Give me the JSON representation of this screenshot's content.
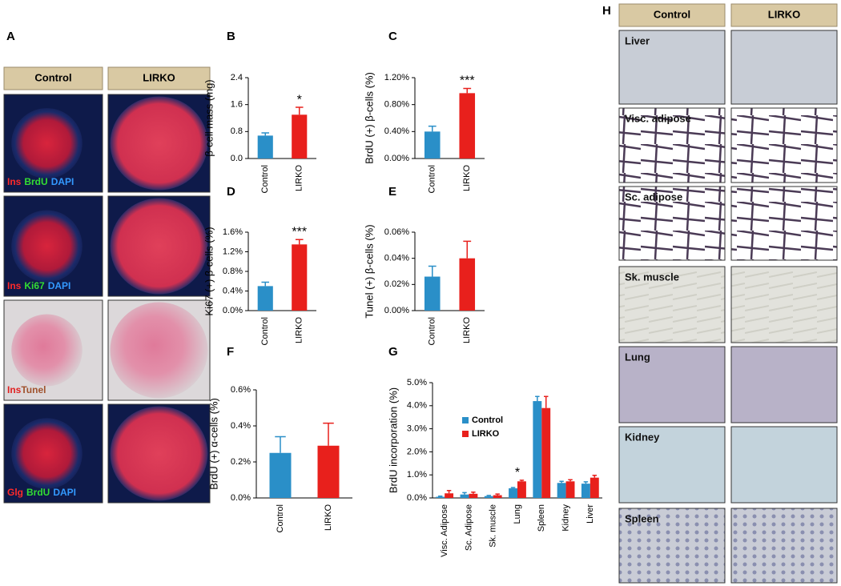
{
  "panel_a": {
    "label": "A",
    "columns": [
      "Control",
      "LIRKO"
    ],
    "stains": [
      [
        "Ins",
        "BrdU",
        "DAPI"
      ],
      [
        "Ins",
        "Ki67",
        "DAPI"
      ],
      [
        "Ins",
        "Tunel"
      ],
      [
        "Glg",
        "BrdU",
        "DAPI"
      ]
    ],
    "stain_colors": [
      [
        "#ff2a2a",
        "#33dd33",
        "#3399ff"
      ],
      [
        "#ff2a2a",
        "#33dd33",
        "#3399ff"
      ],
      [
        "#e02020",
        "#a0522d"
      ],
      [
        "#ff2a2a",
        "#33dd33",
        "#3399ff"
      ]
    ]
  },
  "panel_h": {
    "label": "H",
    "columns": [
      "Control",
      "LIRKO"
    ],
    "tissues": [
      "Liver",
      "Visc. adipose",
      "Sc. adipose",
      "Sk. muscle",
      "Lung",
      "Kidney",
      "Spleen"
    ]
  },
  "chart_data": [
    {
      "type": "bar",
      "panel": "B",
      "ylabel": "β-cell mass (mg)",
      "categories": [
        "Control",
        "LIRKO"
      ],
      "values": [
        0.68,
        1.3
      ],
      "errors": [
        0.08,
        0.22
      ],
      "colors": [
        "#2a8fc8",
        "#e8201c"
      ],
      "ylim": [
        0,
        2.4
      ],
      "yticks": [
        {
          "value": 0,
          "label": "0.0"
        },
        0.8,
        1.6,
        2.4
      ],
      "annotations": [
        {
          "text": "*",
          "x": "LIRKO"
        }
      ]
    },
    {
      "type": "bar",
      "panel": "C",
      "ylabel": "BrdU (+) β-cells (%)",
      "categories": [
        "Control",
        "LIRKO"
      ],
      "values": [
        0.4,
        0.97
      ],
      "errors": [
        0.08,
        0.07
      ],
      "colors": [
        "#2a8fc8",
        "#e8201c"
      ],
      "ylim": [
        0,
        1.2
      ],
      "yticks": [
        {
          "value": 0,
          "label": "0.00%"
        },
        {
          "value": 0.4,
          "label": "0.40%"
        },
        {
          "value": 0.8,
          "label": "0.80%"
        },
        {
          "value": 1.2,
          "label": "1.20%"
        }
      ],
      "annotations": [
        {
          "text": "***",
          "x": "LIRKO"
        }
      ]
    },
    {
      "type": "bar",
      "panel": "D",
      "ylabel": "Ki67 (+) β-cells (%)",
      "categories": [
        "Control",
        "LIRKO"
      ],
      "values": [
        0.5,
        1.35
      ],
      "errors": [
        0.08,
        0.1
      ],
      "colors": [
        "#2a8fc8",
        "#e8201c"
      ],
      "ylim": [
        0,
        1.6
      ],
      "yticks": [
        {
          "value": 0,
          "label": "0.0%"
        },
        {
          "value": 0.4,
          "label": "0.4%"
        },
        {
          "value": 0.8,
          "label": "0.8%"
        },
        {
          "value": 1.2,
          "label": "1.2%"
        },
        {
          "value": 1.6,
          "label": "1.6%"
        }
      ],
      "annotations": [
        {
          "text": "***",
          "x": "LIRKO"
        }
      ]
    },
    {
      "type": "bar",
      "panel": "E",
      "ylabel": "Tunel (+) β-cells (%)",
      "categories": [
        "Control",
        "LIRKO"
      ],
      "values": [
        0.026,
        0.04
      ],
      "errors": [
        0.008,
        0.013
      ],
      "colors": [
        "#2a8fc8",
        "#e8201c"
      ],
      "ylim": [
        0,
        0.06
      ],
      "yticks": [
        {
          "value": 0,
          "label": "0.00%"
        },
        {
          "value": 0.02,
          "label": "0.02%"
        },
        {
          "value": 0.04,
          "label": "0.04%"
        },
        {
          "value": 0.06,
          "label": "0.06%"
        }
      ]
    },
    {
      "type": "bar",
      "panel": "F",
      "ylabel": "BrdU (+) α-cells (%)",
      "categories": [
        "Control",
        "LIRKO"
      ],
      "values": [
        0.25,
        0.29
      ],
      "errors": [
        0.09,
        0.125
      ],
      "colors": [
        "#2a8fc8",
        "#e8201c"
      ],
      "ylim": [
        0,
        0.6
      ],
      "yticks": [
        {
          "value": 0,
          "label": "0.0%"
        },
        {
          "value": 0.2,
          "label": "0.2%"
        },
        {
          "value": 0.4,
          "label": "0.4%"
        },
        {
          "value": 0.6,
          "label": "0.6%"
        }
      ]
    },
    {
      "type": "bar",
      "panel": "G",
      "ylabel": "BrdU incorporation (%)",
      "categories": [
        "Visc. Adipose",
        "Sc. Adipose",
        "Sk. muscle",
        "Lung",
        "Spleen",
        "Kidney",
        "Liver"
      ],
      "series": [
        {
          "name": "Control",
          "color": "#2a8fc8",
          "values": [
            0.05,
            0.15,
            0.08,
            0.42,
            4.2,
            0.65,
            0.62
          ],
          "errors": [
            0.03,
            0.08,
            0.03,
            0.03,
            0.2,
            0.07,
            0.08
          ]
        },
        {
          "name": "LIRKO",
          "color": "#e8201c",
          "values": [
            0.2,
            0.18,
            0.12,
            0.72,
            3.9,
            0.72,
            0.88
          ],
          "errors": [
            0.12,
            0.07,
            0.05,
            0.05,
            0.5,
            0.07,
            0.1
          ]
        }
      ],
      "ylim": [
        0,
        5
      ],
      "yticks": [
        {
          "value": 0,
          "label": "0.0%"
        },
        {
          "value": 1,
          "label": "1.0%"
        },
        {
          "value": 2,
          "label": "2.0%"
        },
        {
          "value": 3,
          "label": "3.0%"
        },
        {
          "value": 4,
          "label": "4.0%"
        },
        {
          "value": 5,
          "label": "5.0%"
        }
      ],
      "annotations": [
        {
          "text": "*",
          "x": "Lung"
        }
      ]
    }
  ]
}
